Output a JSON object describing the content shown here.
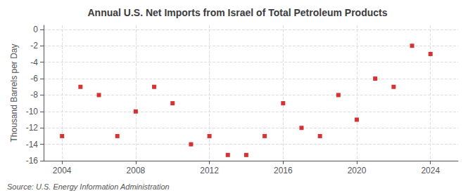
{
  "chart_data": {
    "type": "scatter",
    "title": "Annual U.S. Net Imports from Israel of Total Petroleum Products",
    "ylabel": "Thousand Barrels per Day",
    "annotations": [
      "Source: U.S. Energy Information Administration"
    ],
    "x": [
      2004,
      2005,
      2006,
      2007,
      2008,
      2009,
      2010,
      2011,
      2012,
      2013,
      2014,
      2015,
      2016,
      2017,
      2018,
      2019,
      2020,
      2021,
      2022,
      2023,
      2024
    ],
    "values": [
      -13,
      -7,
      -8,
      -13,
      -10,
      -7,
      -9,
      -14,
      -13,
      -15.3,
      -15.3,
      -13,
      -9,
      -12,
      -13,
      -8,
      -11,
      -6,
      -7,
      -2,
      -3
    ],
    "color": "#cc0000",
    "marker": "square",
    "xlim": [
      2003,
      2025.5
    ],
    "xticks": [
      2004,
      2008,
      2012,
      2016,
      2020,
      2024
    ],
    "ylim": [
      -16,
      0.5
    ],
    "yticks": [
      0,
      -2,
      -4,
      -6,
      -8,
      -10,
      -12,
      -14,
      -16
    ],
    "grid": true
  }
}
